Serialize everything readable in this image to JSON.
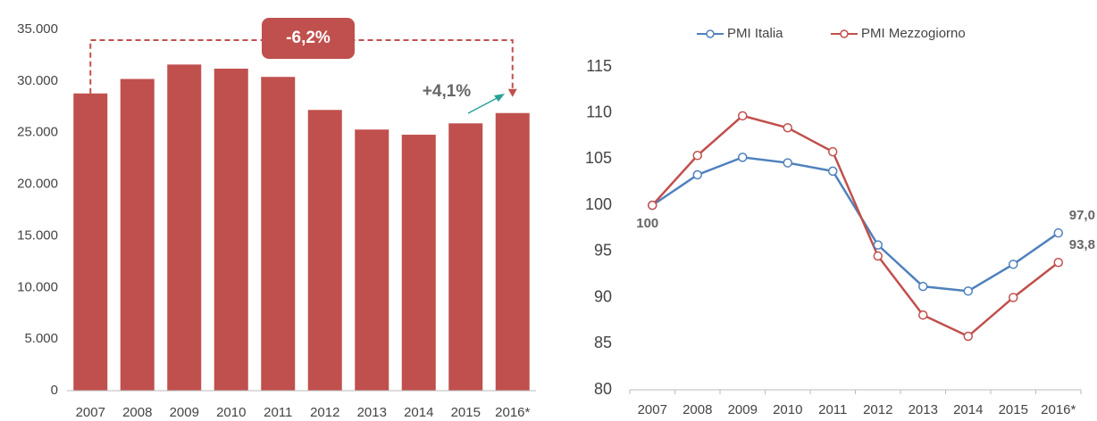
{
  "chart_data": [
    {
      "type": "bar",
      "categories": [
        "2007",
        "2008",
        "2009",
        "2010",
        "2011",
        "2012",
        "2013",
        "2014",
        "2015",
        "2016*"
      ],
      "values": [
        28800,
        30200,
        31600,
        31200,
        30400,
        27200,
        25300,
        24800,
        25900,
        26900
      ],
      "color": "#c0504d",
      "ylim": [
        0,
        35000
      ],
      "yticks": [
        0,
        {
          "value": 5000,
          "label": "5.000"
        },
        {
          "value": 10000,
          "label": "10.000"
        },
        {
          "value": 15000,
          "label": "15.000"
        },
        {
          "value": 20000,
          "label": "20.000"
        },
        {
          "value": 25000,
          "label": "25.000"
        },
        {
          "value": 30000,
          "label": "30.000"
        },
        {
          "value": 35000,
          "label": "35.000"
        }
      ],
      "annotations": [
        "-6,2%",
        "+4,1%"
      ]
    },
    {
      "type": "line",
      "categories": [
        "2007",
        "2008",
        "2009",
        "2010",
        "2011",
        "2012",
        "2013",
        "2014",
        "2015",
        "2016*"
      ],
      "series": [
        {
          "name": "PMI Italia",
          "color": "#4f81bd",
          "values": [
            100,
            103.3,
            105.2,
            104.6,
            103.7,
            95.7,
            91.2,
            90.7,
            93.6,
            97.0
          ],
          "value_labels": [
            "100",
            null,
            null,
            null,
            null,
            null,
            null,
            null,
            null,
            "97,0"
          ]
        },
        {
          "name": "PMI Mezzogiorno",
          "color": "#c0504d",
          "values": [
            100,
            105.4,
            109.7,
            108.4,
            105.8,
            94.5,
            88.1,
            85.8,
            90.0,
            93.8
          ],
          "value_labels": [
            null,
            null,
            null,
            null,
            null,
            null,
            null,
            null,
            null,
            "93,8"
          ]
        }
      ],
      "ylim": [
        80,
        115
      ],
      "yticks": [
        80,
        85,
        90,
        95,
        100,
        105,
        110,
        115
      ],
      "legend": "top"
    }
  ]
}
